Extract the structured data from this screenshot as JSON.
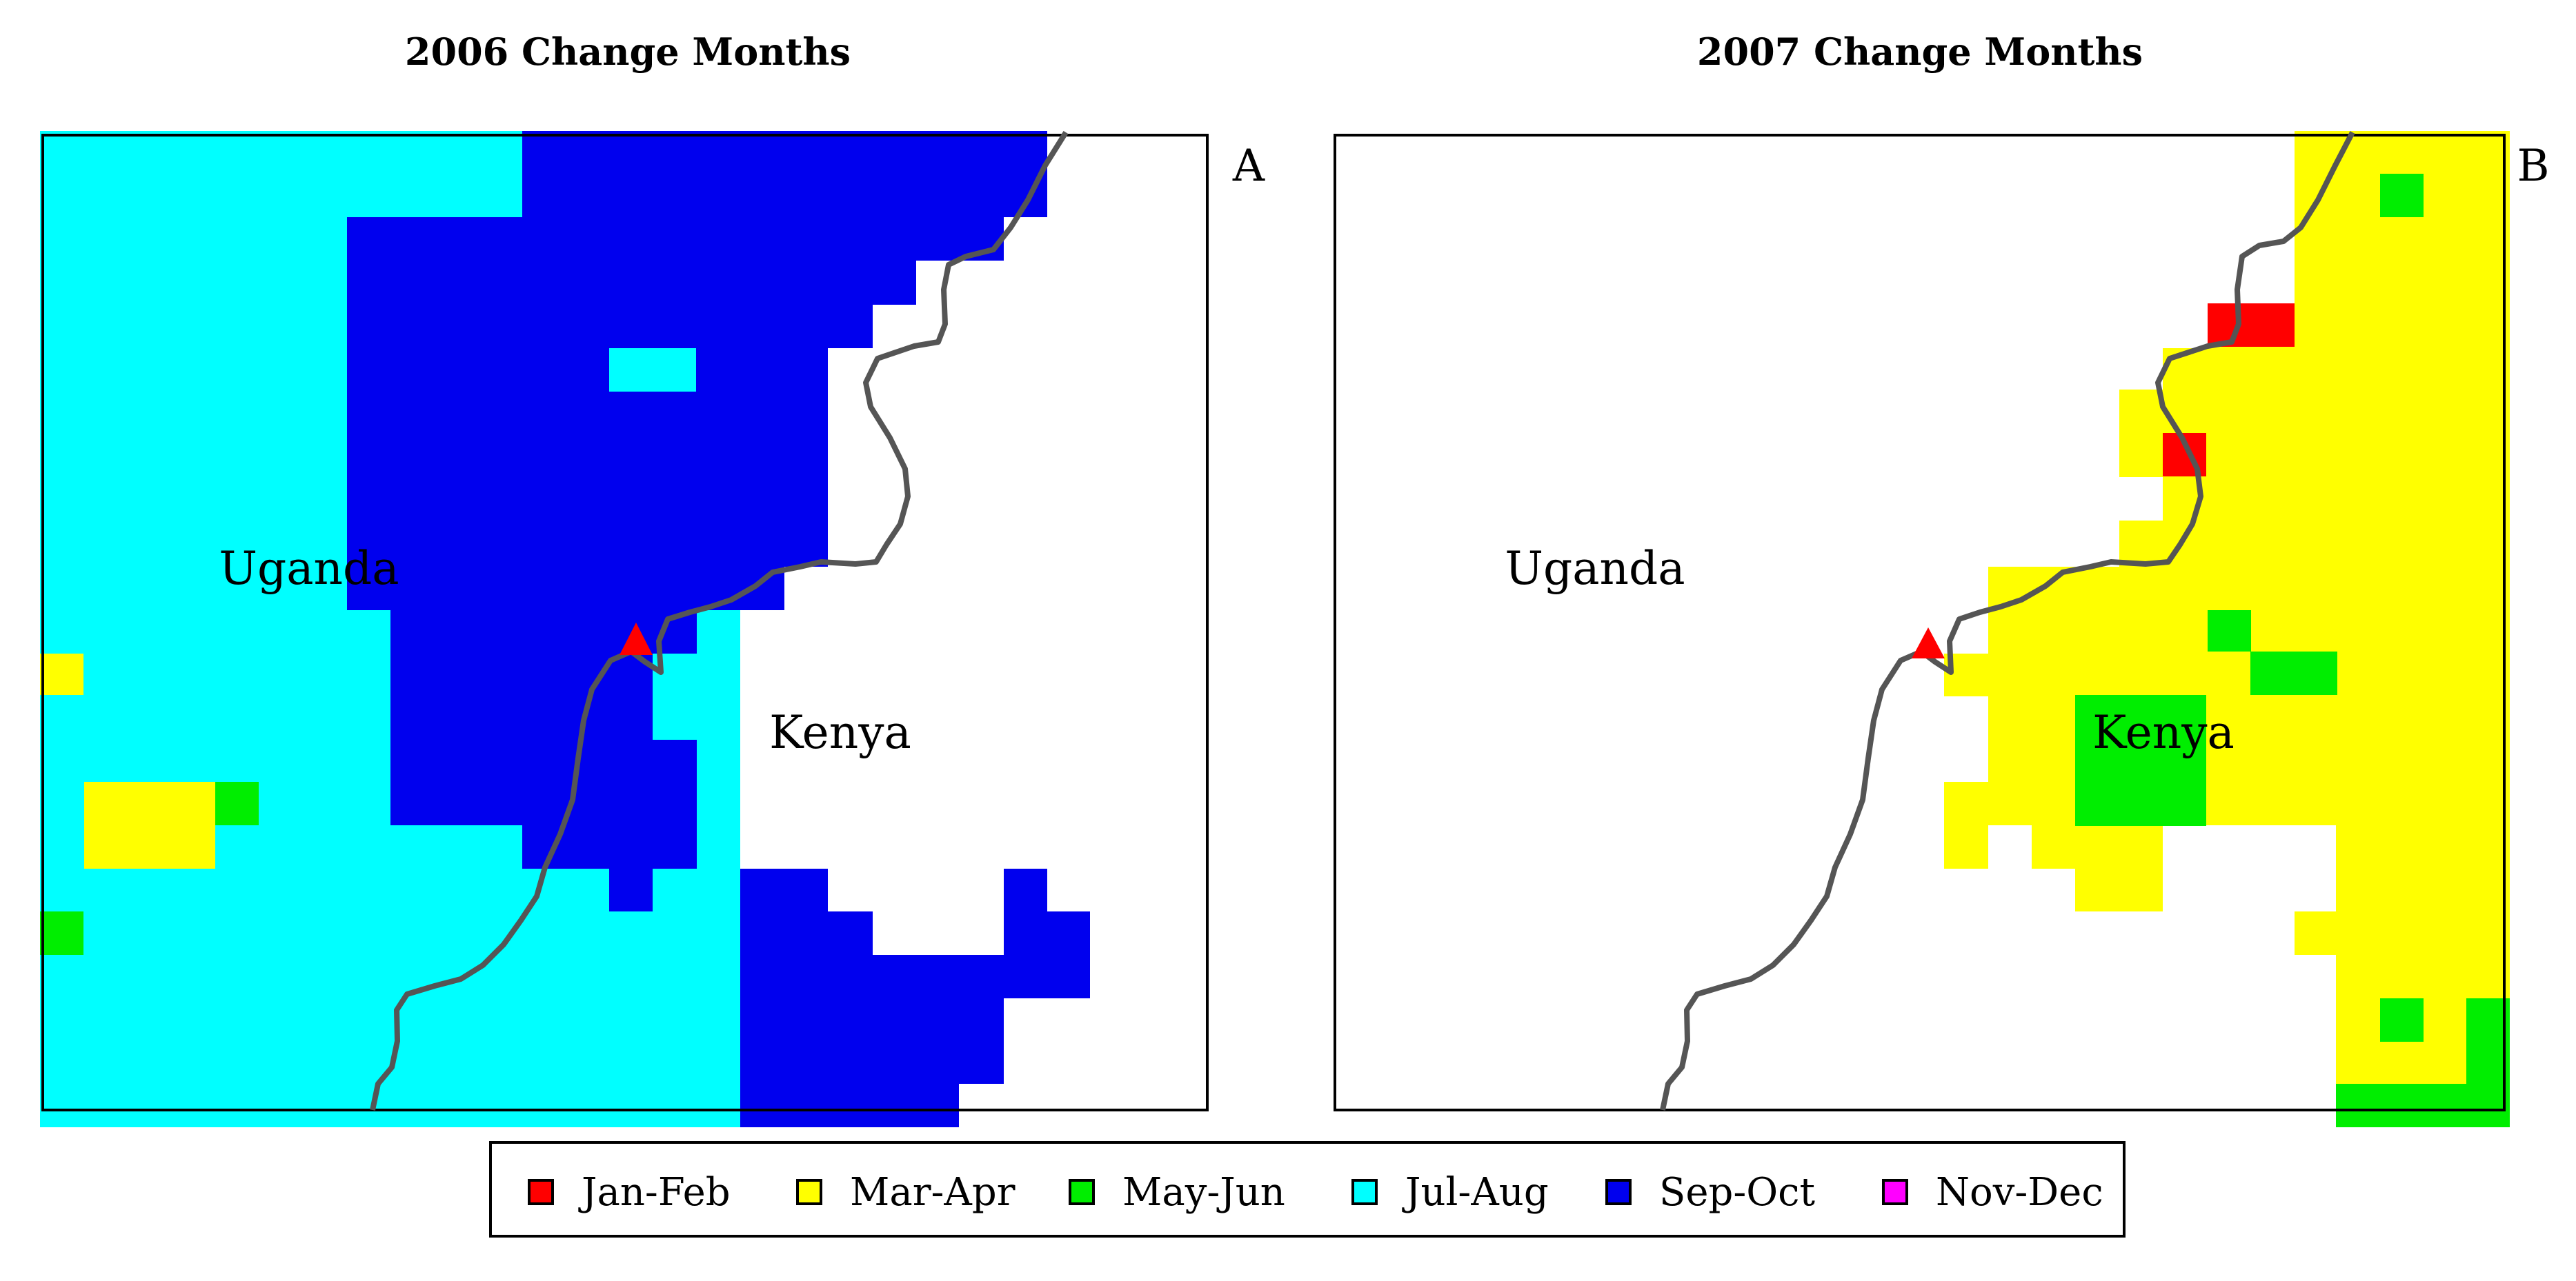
{
  "colors": {
    "jan_feb": "#ff0000",
    "mar_apr": "#ffff00",
    "may_jun": "#00ee00",
    "jul_aug": "#00ffff",
    "sep_oct": "#0000ee",
    "nov_dec": "#ff00ff",
    "border_line": "#555555",
    "marker": "#ff0000"
  },
  "panel_a": {
    "title": "2006 Change Months",
    "label": "A",
    "countries": {
      "left": "Uganda",
      "right": "Kenya"
    }
  },
  "panel_b": {
    "title": "2007 Change Months",
    "label": "B",
    "countries": {
      "left": "Uganda",
      "right": "Kenya"
    }
  },
  "legend": [
    {
      "label": "Jan-Feb",
      "key": "jan_feb"
    },
    {
      "label": "Mar-Apr",
      "key": "mar_apr"
    },
    {
      "label": "May-Jun",
      "key": "may_jun"
    },
    {
      "label": "Jul-Aug",
      "key": "jul_aug"
    },
    {
      "label": "Sep-Oct",
      "key": "sep_oct"
    },
    {
      "label": "Nov-Dec",
      "key": "nov_dec"
    }
  ]
}
